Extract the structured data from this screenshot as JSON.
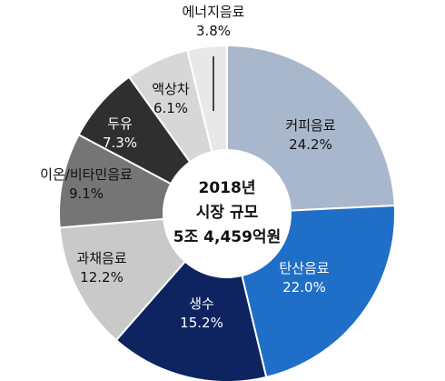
{
  "chart_data": {
    "type": "pie",
    "center_lines": [
      "2018년",
      "시장 규모",
      "5조 4,459억원"
    ],
    "slices": [
      {
        "name": "커피음료",
        "value": 24.2,
        "label": "24.2%",
        "color": "#a9b7cc",
        "text_color": "#111111"
      },
      {
        "name": "탄산음료",
        "value": 22.0,
        "label": "22.0%",
        "color": "#1f6fc8",
        "text_color": "#ffffff"
      },
      {
        "name": "생수",
        "value": 15.2,
        "label": "15.2%",
        "color": "#0d2461",
        "text_color": "#ffffff"
      },
      {
        "name": "과채음료",
        "value": 12.2,
        "label": "12.2%",
        "color": "#c9c9c9",
        "text_color": "#111111"
      },
      {
        "name": "이온/비타민음료",
        "value": 9.1,
        "label": "9.1%",
        "color": "#757575",
        "text_color": "#111111"
      },
      {
        "name": "두유",
        "value": 7.3,
        "label": "7.3%",
        "color": "#2f2f2f",
        "text_color": "#ffffff"
      },
      {
        "name": "액상차",
        "value": 6.1,
        "label": "6.1%",
        "color": "#d7d7d7",
        "text_color": "#111111"
      },
      {
        "name": "에너지음료",
        "value": 3.8,
        "label": "3.8%",
        "color": "#e8e8e8",
        "text_color": "#111111"
      }
    ]
  }
}
